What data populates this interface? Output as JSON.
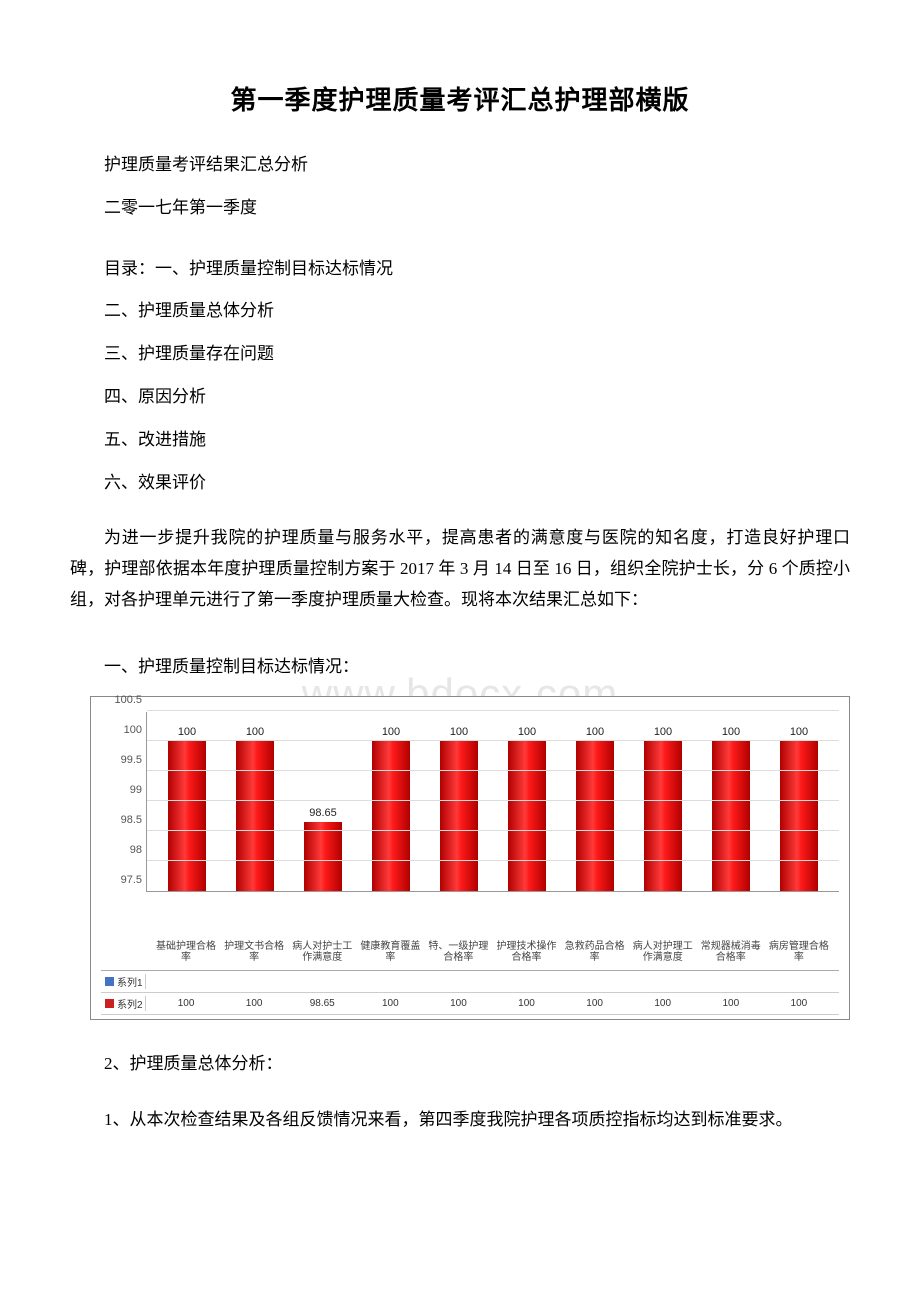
{
  "title": "第一季度护理质量考评汇总护理部横版",
  "lines": {
    "l1": "护理质量考评结果汇总分析",
    "l2": "二零一七年第一季度",
    "l3": "目录：一、护理质量控制目标达标情况",
    "l4": "二、护理质量总体分析",
    "l5": "三、护理质量存在问题",
    "l6": "四、原因分析",
    "l7": "五、改进措施",
    "l8": "六、效果评价"
  },
  "body1": "为进一步提升我院的护理质量与服务水平，提高患者的满意度与医院的知名度，打造良好护理口碑，护理部依据本年度护理质量控制方案于 2017 年 3 月 14 日至 16 日，组织全院护士长，分 6 个质控小组，对各护理单元进行了第一季度护理质量大检查。现将本次结果汇总如下：",
  "section1_title": "一、护理质量控制目标达标情况：",
  "section2_title": "2、护理质量总体分析：",
  "body2": "1、从本次检查结果及各组反馈情况来看，第四季度我院护理各项质控指标均达到标准要求。",
  "watermark": "www.bdocx.com",
  "chart": {
    "type": "bar",
    "ylim": [
      97.5,
      100.5
    ],
    "yticks": [
      97.5,
      98,
      98.5,
      99,
      99.5,
      100,
      100.5
    ],
    "categories": [
      "基础护理合格率",
      "护理文书合格率",
      "病人对护士工作满意度",
      "健康教育覆盖率",
      "特、一级护理合格率",
      "护理技术操作合格率",
      "急救药品合格率",
      "病人对护理工作满意度",
      "常规器械消毒合格率",
      "病房管理合格率"
    ],
    "values": [
      100,
      100,
      98.65,
      100,
      100,
      100,
      100,
      100,
      100,
      100
    ],
    "bar_labels": [
      "100",
      "100",
      "98.65",
      "100",
      "100",
      "100",
      "100",
      "100",
      "100",
      "100"
    ],
    "bar_gradient": [
      "#b00000",
      "#ff3a3a",
      "#ff1a1a",
      "#b00000"
    ],
    "grid_color": "#dddddd",
    "axis_color": "#999999",
    "series1_color": "#4472c4",
    "series2_color": "#cc2020",
    "series1_name": "系列1",
    "series2_name": "系列2",
    "series1_row": [
      "",
      "",
      "",
      "",
      "",
      "",
      "",
      "",
      "",
      ""
    ],
    "series2_row": [
      "100",
      "100",
      "98.65",
      "100",
      "100",
      "100",
      "100",
      "100",
      "100",
      "100"
    ]
  }
}
